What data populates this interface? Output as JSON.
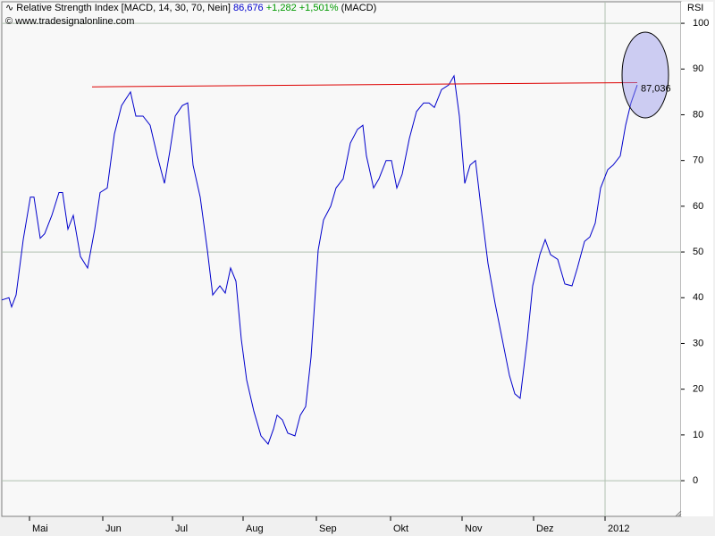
{
  "chart_data": {
    "type": "line",
    "title": "Relative Strength Index [MACD, 14, 30, 70, Nein]",
    "header_value": "86,676",
    "header_change": "+1,282 +1,501%",
    "header_source": "(MACD)",
    "copyright": "© www.tradesignalonline.com",
    "y_axis_label": "RSI",
    "color": "#0000cc",
    "x": [
      0,
      8,
      11,
      16,
      24,
      32,
      36,
      43,
      48,
      56,
      64,
      68,
      74,
      80,
      88,
      96,
      104,
      110,
      118,
      126,
      134,
      144,
      150,
      158,
      166,
      174,
      182,
      188,
      194,
      202,
      208,
      214,
      222,
      230,
      236,
      244,
      250,
      256,
      262,
      268,
      274,
      282,
      290,
      298,
      304,
      308,
      314,
      320,
      328,
      334,
      340,
      346,
      354,
      360,
      368,
      374,
      382,
      390,
      398,
      404,
      408,
      416,
      422,
      430,
      436,
      442,
      448,
      456,
      464,
      472,
      478,
      484,
      492,
      500,
      506,
      512,
      518,
      524,
      530,
      536,
      544,
      552,
      560,
      568,
      574,
      580,
      588,
      594,
      602,
      608,
      614,
      622,
      630,
      638,
      644,
      652,
      658,
      664,
      670,
      678,
      684,
      692,
      698,
      704,
      711
    ],
    "values": [
      39.5,
      40,
      38,
      40.6,
      52.7,
      62,
      62,
      53,
      54,
      58,
      63,
      63,
      55,
      58,
      49,
      46.5,
      55,
      63,
      64,
      75.8,
      82,
      85,
      79.7,
      79.7,
      77.7,
      71,
      65,
      72,
      79.7,
      82,
      82.6,
      69,
      62,
      50.4,
      40.6,
      42.6,
      41,
      46.5,
      43.6,
      30.9,
      22,
      15.2,
      9.8,
      8,
      11.3,
      14.3,
      13.3,
      10.4,
      9.8,
      14.3,
      16.2,
      27,
      50.4,
      57,
      60,
      64,
      66,
      73.8,
      76.8,
      77.7,
      71,
      64,
      66,
      70,
      70,
      64,
      67,
      74.8,
      80.7,
      82.6,
      82.6,
      81.6,
      85.5,
      86.5,
      88.5,
      79.7,
      65,
      69,
      70,
      60,
      47.5,
      38.7,
      30.9,
      23,
      19,
      18,
      30.9,
      42.6,
      49.4,
      52.7,
      49.4,
      48.4,
      43,
      42.6,
      46.5,
      52.3,
      53.3,
      56.3,
      64,
      68,
      69,
      71,
      77.7,
      82.6,
      86.5
    ],
    "trendline": {
      "color": "#dd0000",
      "x": [
        101,
        711
      ],
      "values": [
        86.1,
        87.036
      ],
      "value_labels": [
        null,
        "87,036"
      ]
    },
    "xlim": [
      0,
      760
    ],
    "xticks": [
      {
        "value": 31,
        "label": "Mai"
      },
      {
        "value": 113,
        "label": "Jun"
      },
      {
        "value": 191,
        "label": "Jul"
      },
      {
        "value": 270,
        "label": "Aug"
      },
      {
        "value": 352,
        "label": "Sep"
      },
      {
        "value": 435,
        "label": "Okt"
      },
      {
        "value": 515,
        "label": "Nov"
      },
      {
        "value": 595,
        "label": "Dez"
      },
      {
        "value": 675,
        "label": "2012"
      }
    ],
    "ylim": [
      -7.8,
      104.7
    ],
    "yticks": [
      0,
      10,
      20,
      30,
      40,
      50,
      60,
      70,
      80,
      90,
      100
    ],
    "ygrid": [
      0,
      50,
      100
    ],
    "xgrid": [
      675
    ]
  }
}
